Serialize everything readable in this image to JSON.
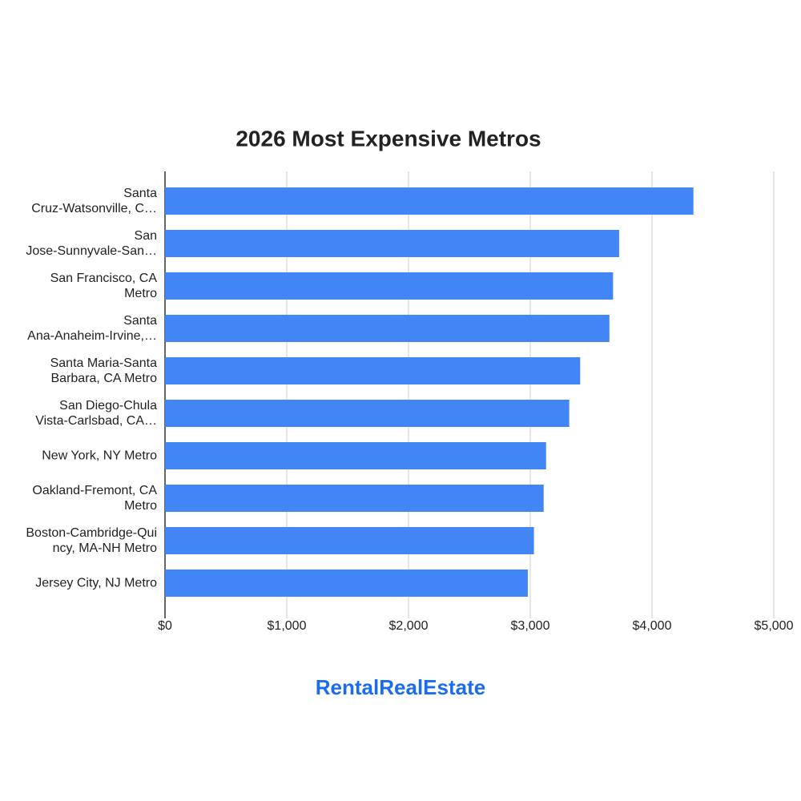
{
  "chart_data": {
    "type": "bar",
    "orientation": "horizontal",
    "title": "2026 Most Expensive Metros",
    "categories": [
      "Santa\nCruz-Watsonville, C…",
      "San\nJose-Sunnyvale-San…",
      "San Francisco, CA\nMetro",
      "Santa\nAna-Anaheim-Irvine,…",
      "Santa Maria-Santa\nBarbara, CA Metro",
      "San Diego-Chula\nVista-Carlsbad, CA…",
      "New York, NY Metro",
      "Oakland-Fremont, CA\nMetro",
      "Boston-Cambridge-Qui\nncy, MA-NH Metro",
      "Jersey City, NJ Metro"
    ],
    "values": [
      4340,
      3730,
      3680,
      3650,
      3410,
      3320,
      3130,
      3110,
      3030,
      2980
    ],
    "color": "#4285f4",
    "xlim": [
      0,
      5000
    ],
    "xticks": [
      {
        "value": 0,
        "label": "$0"
      },
      {
        "value": 1000,
        "label": "$1,000"
      },
      {
        "value": 2000,
        "label": "$2,000"
      },
      {
        "value": 3000,
        "label": "$3,000"
      },
      {
        "value": 4000,
        "label": "$4,000"
      },
      {
        "value": 5000,
        "label": "$5,000"
      }
    ],
    "grid": true
  },
  "logo": "RentalRealEstate"
}
